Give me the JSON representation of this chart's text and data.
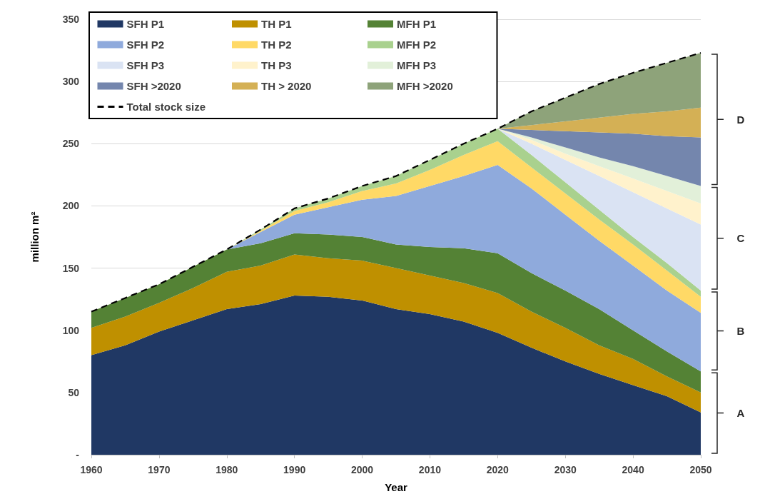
{
  "chart_data": {
    "type": "area",
    "xlabel": "Year",
    "ylabel": "million m²",
    "x": [
      1960,
      1965,
      1970,
      1975,
      1980,
      1985,
      1990,
      1995,
      2000,
      2005,
      2010,
      2015,
      2020,
      2025,
      2030,
      2035,
      2040,
      2045,
      2050
    ],
    "xlim": [
      1960,
      2050
    ],
    "xticks": [
      1960,
      1970,
      1980,
      1990,
      2000,
      2010,
      2020,
      2030,
      2040,
      2050
    ],
    "ylim": [
      0,
      350
    ],
    "yticks": [
      {
        "value": 0,
        "label": "-"
      },
      50,
      100,
      150,
      200,
      250,
      300,
      350
    ],
    "stacked": true,
    "grid": "y",
    "legend": "top left",
    "marker": "none",
    "series": [
      {
        "name": "SFH P1",
        "color": "#203864",
        "values": [
          80,
          88,
          99,
          108,
          117,
          121,
          128,
          127,
          124,
          117,
          113,
          107,
          98,
          86,
          75,
          65,
          56,
          47,
          34
        ]
      },
      {
        "name": "TH P1",
        "color": "#bf9000",
        "values": [
          22,
          23,
          23,
          26,
          30,
          31,
          33,
          31,
          32,
          33,
          31,
          31,
          32,
          29,
          27,
          23,
          21,
          16,
          16
        ]
      },
      {
        "name": "MFH P1",
        "color": "#548235",
        "values": [
          13,
          15,
          15,
          17,
          18,
          18,
          17,
          19,
          19,
          19,
          23,
          28,
          32,
          31,
          30,
          29,
          23,
          20,
          17
        ]
      },
      {
        "name": "SFH P2",
        "color": "#8faadc",
        "values": [
          null,
          null,
          null,
          null,
          0,
          9,
          15,
          22,
          30,
          39,
          49,
          58,
          71,
          68,
          61,
          55,
          52,
          49,
          47
        ]
      },
      {
        "name": "TH P2",
        "color": "#ffd966",
        "values": [
          null,
          null,
          null,
          null,
          0,
          1,
          3,
          4,
          7,
          10,
          13,
          17,
          19,
          17,
          17,
          17,
          17,
          16,
          13
        ]
      },
      {
        "name": "MFH P2",
        "color": "#a9d18e",
        "values": [
          null,
          null,
          null,
          null,
          0,
          1,
          2,
          3,
          4,
          6,
          8,
          9,
          10,
          10,
          9,
          8,
          6,
          6,
          5
        ]
      },
      {
        "name": "SFH P3",
        "color": "#dae3f3",
        "values": [
          null,
          null,
          null,
          null,
          null,
          null,
          null,
          null,
          null,
          null,
          null,
          null,
          0,
          9,
          18,
          27,
          36,
          44,
          53
        ]
      },
      {
        "name": "TH P3",
        "color": "#fff2cc",
        "values": [
          null,
          null,
          null,
          null,
          null,
          null,
          null,
          null,
          null,
          null,
          null,
          null,
          0,
          3,
          5,
          8,
          11,
          14,
          17
        ]
      },
      {
        "name": "MFH P3",
        "color": "#e2f0d9",
        "values": [
          null,
          null,
          null,
          null,
          null,
          null,
          null,
          null,
          null,
          null,
          null,
          null,
          0,
          2,
          5,
          7,
          10,
          12,
          14
        ]
      },
      {
        "name": "SFH >2020",
        "color": "#7486ad",
        "values": [
          null,
          null,
          null,
          null,
          null,
          null,
          null,
          null,
          null,
          null,
          null,
          null,
          0,
          6,
          13,
          20,
          26,
          32,
          39
        ]
      },
      {
        "name": "TH > 2020",
        "color": "#d4b055",
        "values": [
          null,
          null,
          null,
          null,
          null,
          null,
          null,
          null,
          null,
          null,
          null,
          null,
          0,
          4,
          8,
          12,
          16,
          20,
          24
        ]
      },
      {
        "name": "MFH >2020",
        "color": "#8ea37a",
        "values": [
          null,
          null,
          null,
          null,
          null,
          null,
          null,
          null,
          null,
          null,
          null,
          null,
          0,
          11,
          19,
          27,
          33,
          39,
          44
        ]
      },
      {
        "name": "Total stock size",
        "type": "line",
        "color": "#000000",
        "line_style": "dashed",
        "values": [
          115,
          126,
          137,
          151,
          165,
          181,
          198,
          206,
          216,
          224,
          237,
          250,
          262,
          276,
          287,
          298,
          307,
          315,
          323
        ]
      }
    ],
    "annotations": [
      "A",
      "B",
      "C",
      "D"
    ]
  }
}
